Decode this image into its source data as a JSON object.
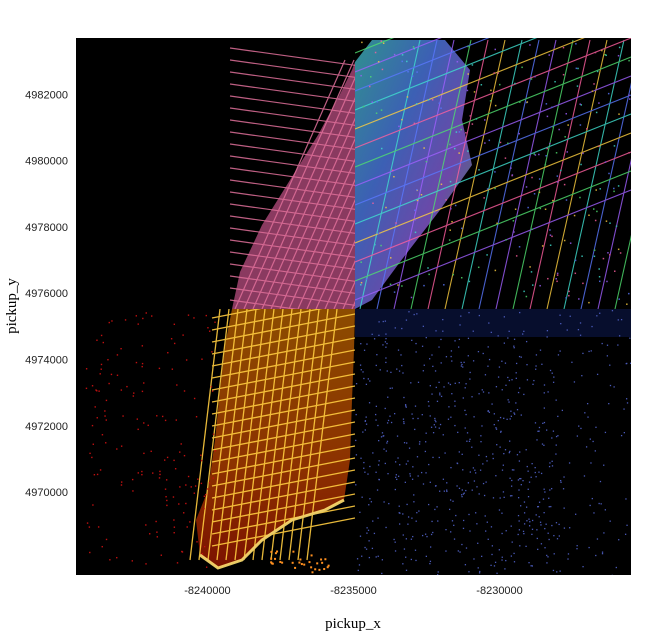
{
  "chart_data": {
    "type": "heatmap",
    "title": "",
    "xlabel": "pickup_x",
    "ylabel": "pickup_y",
    "xlim": [
      -8244500,
      -8225500
    ],
    "ylim": [
      4967500,
      4983700
    ],
    "x_ticks": [
      {
        "value": -8240000,
        "label": "-8240000"
      },
      {
        "value": -8235000,
        "label": "-8235000"
      },
      {
        "value": -8230000,
        "label": "-8230000"
      }
    ],
    "y_ticks": [
      {
        "value": 4970000,
        "label": "4970000"
      },
      {
        "value": 4972000,
        "label": "4972000"
      },
      {
        "value": 4974000,
        "label": "4974000"
      },
      {
        "value": 4976000,
        "label": "4976000"
      },
      {
        "value": 4978000,
        "label": "4978000"
      },
      {
        "value": 4980000,
        "label": "4980000"
      },
      {
        "value": 4982000,
        "label": "4982000"
      }
    ],
    "quadrant_split": {
      "x": -8235000,
      "y": 4975500
    },
    "quadrants": [
      {
        "position": "top-left",
        "colormap": "pink"
      },
      {
        "position": "top-right",
        "colormap": "rainbow"
      },
      {
        "position": "bottom-left",
        "colormap": "fire"
      },
      {
        "position": "bottom-right",
        "colormap": "blue"
      }
    ],
    "background": "#000000",
    "grid": false
  }
}
